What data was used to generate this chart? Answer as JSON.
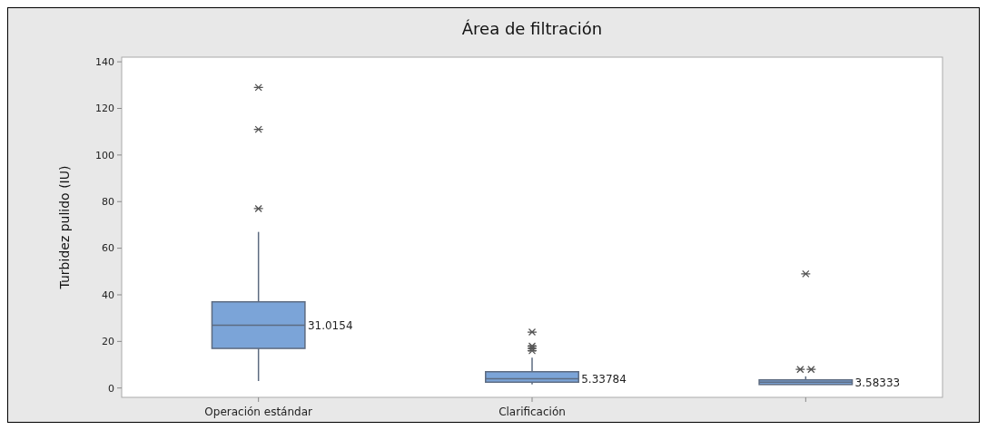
{
  "chart_data": {
    "type": "box",
    "title": "Área de filtración",
    "ylabel": "Turbidez pulido (IU)",
    "categories": [
      "Operación estándar",
      "Clarificación",
      null
    ],
    "boxes": [
      {
        "low": 3,
        "q1": 17,
        "median": 27,
        "q3": 37,
        "high": 67,
        "outliers": [
          77,
          111,
          129
        ]
      },
      {
        "low": 1.5,
        "q1": 2.5,
        "median": 4,
        "q3": 7,
        "high": 13,
        "outliers": [
          16,
          17,
          18,
          24
        ]
      },
      {
        "low": 1.5,
        "q1": 1.5,
        "median": 2.5,
        "q3": 3.5,
        "high": 5,
        "outliers": [
          8,
          8,
          49
        ]
      }
    ],
    "value_labels": [
      "31.0154",
      "5.33784",
      "3.58333"
    ],
    "color": "#7ba4d8",
    "ylim": [
      -4,
      142
    ],
    "yticks": [
      0,
      20,
      40,
      60,
      80,
      100,
      120,
      140
    ],
    "grid": false,
    "marker": "cross"
  }
}
